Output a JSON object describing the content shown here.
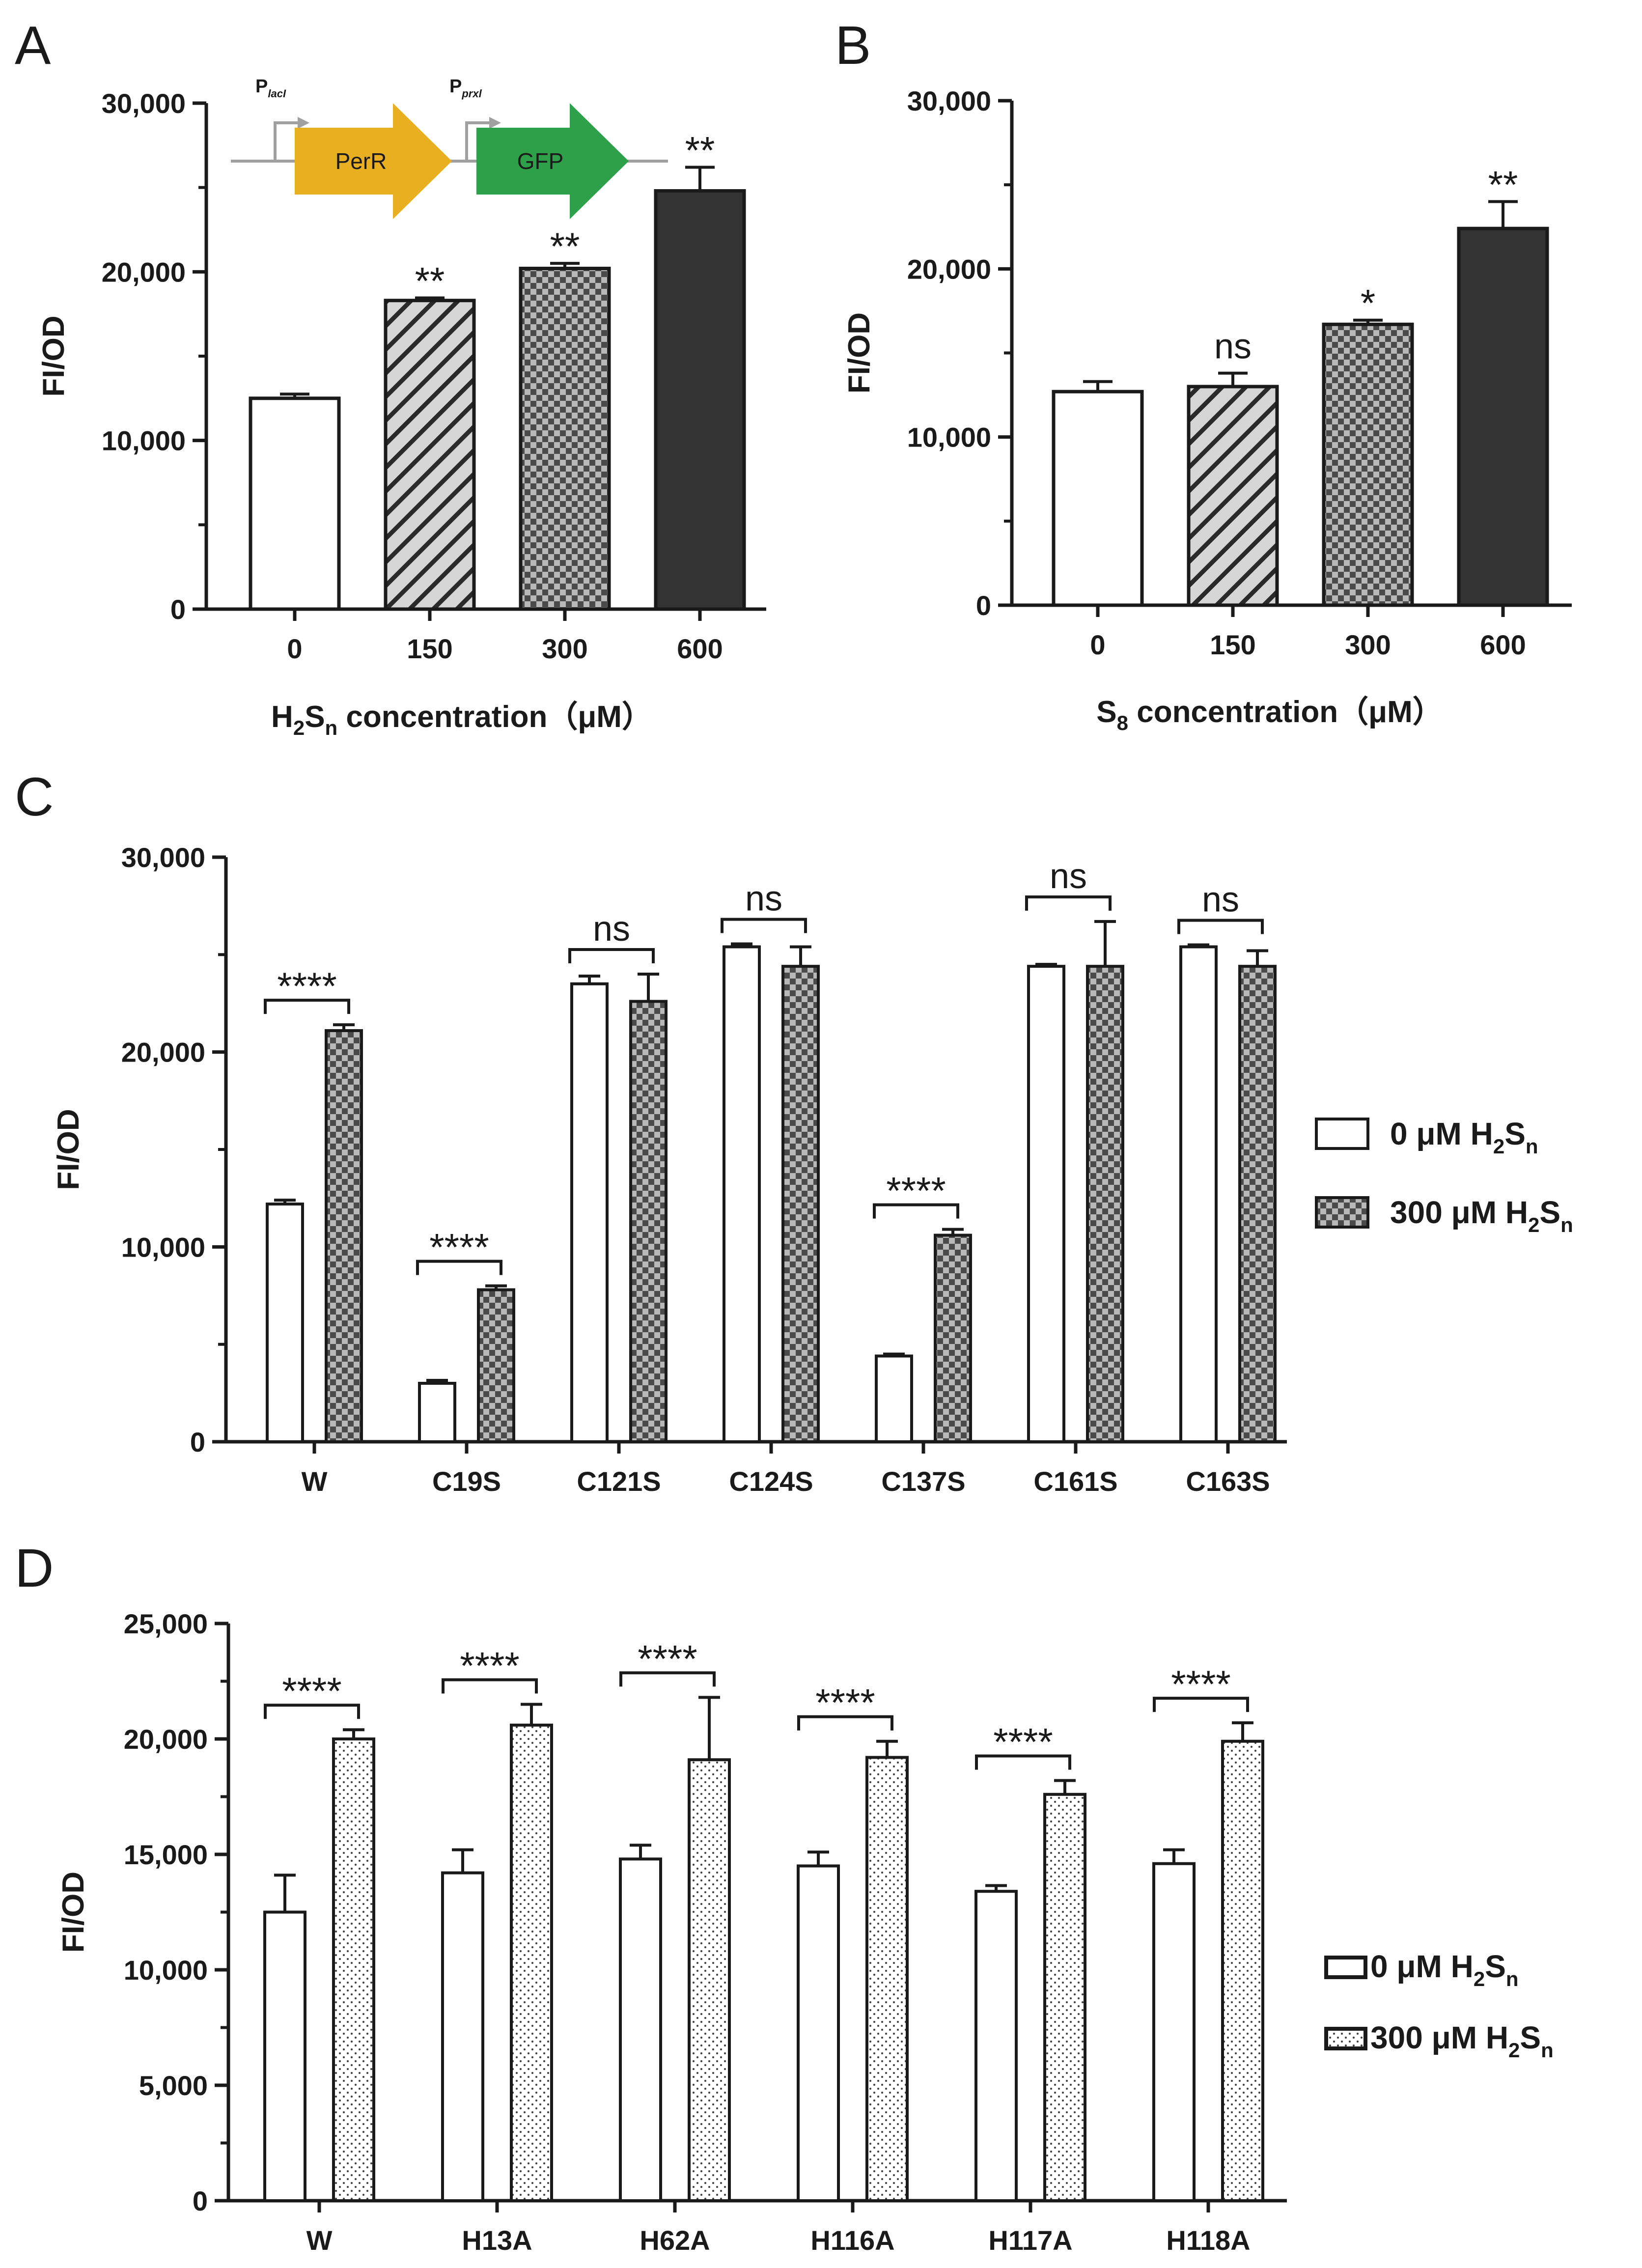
{
  "colors": {
    "bar_white": "#ffffff",
    "bar_hatch": "#d6d6d6",
    "bar_checker_dark": "#555555",
    "bar_checker_light": "#b8b8b8",
    "bar_black": "#333333",
    "perR_arrow": "#e8b021",
    "gfp_arrow": "#2ea04a",
    "promoter_line": "#a0a0a0",
    "axis": "#1a1a1a"
  },
  "construct": {
    "promoter1_main": "P",
    "promoter1_sub": "lacI",
    "promoter2_main": "P",
    "promoter2_sub": "prxl",
    "gene1": "PerR",
    "gene2": "GFP"
  },
  "chart_data": [
    {
      "panel": "A",
      "type": "bar",
      "ylabel": "FI/OD",
      "xlabel_prefix": "H",
      "xlabel_sub1": "2",
      "xlabel_mid": "S",
      "xlabel_sub2": "n",
      "xlabel_suffix": " concentration（μM）",
      "ylim": [
        0,
        30000
      ],
      "yticks": [
        "0",
        "10,000",
        "20,000",
        "30,000"
      ],
      "categories": [
        "0",
        "150",
        "300",
        "600"
      ],
      "values": [
        12500,
        18300,
        20200,
        24800
      ],
      "errors": [
        250,
        150,
        300,
        1400
      ],
      "significance": [
        "",
        "**",
        "**",
        "**"
      ],
      "fills": [
        "white",
        "hatch",
        "checker",
        "black"
      ]
    },
    {
      "panel": "B",
      "type": "bar",
      "ylabel": "FI/OD",
      "xlabel_prefix": "S",
      "xlabel_sub1": "8",
      "xlabel_mid": "",
      "xlabel_sub2": "",
      "xlabel_suffix": " concentration（μM）",
      "ylim": [
        0,
        30000
      ],
      "yticks": [
        "0",
        "10,000",
        "20,000",
        "30,000"
      ],
      "categories": [
        "0",
        "150",
        "300",
        "600"
      ],
      "values": [
        12700,
        13000,
        16700,
        22400
      ],
      "errors": [
        600,
        800,
        250,
        1600
      ],
      "significance": [
        "",
        "ns",
        "*",
        "**"
      ],
      "fills": [
        "white",
        "hatch",
        "checker",
        "black"
      ]
    },
    {
      "panel": "C",
      "type": "bar",
      "ylabel": "FI/OD",
      "ylim": [
        0,
        30000
      ],
      "yticks": [
        "0",
        "10,000",
        "20,000",
        "30,000"
      ],
      "categories": [
        "W",
        "C19S",
        "C121S",
        "C124S",
        "C137S",
        "C161S",
        "C163S"
      ],
      "series": [
        {
          "name": "0 μM H2Sn",
          "legend_main": "0 μM H",
          "values": [
            12200,
            3000,
            23500,
            25400,
            4400,
            24400,
            25400
          ],
          "errors": [
            200,
            150,
            400,
            150,
            100,
            100,
            100
          ],
          "fill": "white"
        },
        {
          "name": "300 μM H2Sn",
          "legend_main": "300 μM H",
          "values": [
            21100,
            7800,
            22600,
            24400,
            10600,
            24400,
            24400
          ],
          "errors": [
            300,
            200,
            1400,
            1000,
            300,
            2300,
            800
          ],
          "fill": "checker"
        }
      ],
      "significance": [
        "****",
        "****",
        "ns",
        "ns",
        "****",
        "ns",
        "ns"
      ]
    },
    {
      "panel": "D",
      "type": "bar",
      "ylabel": "FI/OD",
      "ylim": [
        0,
        25000
      ],
      "yticks": [
        "0",
        "5,000",
        "10,000",
        "15,000",
        "20,000",
        "25,000"
      ],
      "categories": [
        "W",
        "H13A",
        "H62A",
        "H116A",
        "H117A",
        "H118A"
      ],
      "series": [
        {
          "name": "0 μM H2Sn",
          "legend_main": "0 μM H",
          "values": [
            12500,
            14200,
            14800,
            14500,
            13400,
            14600
          ],
          "errors": [
            1600,
            1000,
            600,
            600,
            250,
            600
          ],
          "fill": "white"
        },
        {
          "name": "300 μM H2Sn",
          "legend_main": "300 μM H",
          "values": [
            20000,
            20600,
            19100,
            19200,
            17600,
            19900
          ],
          "errors": [
            400,
            900,
            2700,
            700,
            600,
            800
          ],
          "fill": "dots"
        }
      ],
      "significance": [
        "****",
        "****",
        "****",
        "****",
        "****",
        "****"
      ]
    }
  ]
}
